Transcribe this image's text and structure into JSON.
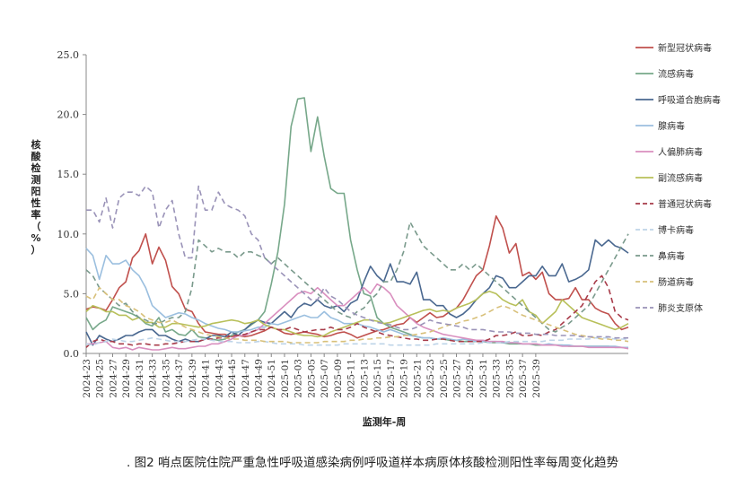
{
  "caption": ". 图2  哨点医院住院严重急性呼吸道感染病例呼吸道样本病原体核酸检测阳性率每周变化趋势",
  "chart_data": {
    "type": "line",
    "title": "",
    "xlabel": "监测年-周",
    "ylabel": "核酸检测阳性率（%）",
    "ylim": [
      0,
      25
    ],
    "yticks": [
      "0.0",
      "5.0",
      "10.0",
      "15.0",
      "20.0",
      "25.0"
    ],
    "grid": false,
    "legend_position": "right",
    "x_start": {
      "year": 2024,
      "week": 23
    },
    "x_labels": [
      "2024-23",
      "2024-25",
      "2024-27",
      "2024-29",
      "2024-31",
      "2024-33",
      "2024-35",
      "2024-37",
      "2024-39",
      "2024-41",
      "2024-43",
      "2024-45",
      "2024-47",
      "2024-49",
      "2024-51",
      "2025-01",
      "2025-03",
      "2025-05",
      "2025-07",
      "2025-09",
      "2025-11",
      "2025-13",
      "2025-15",
      "2025-17",
      "2025-19",
      "2025-21",
      "2025-23",
      "2025-25",
      "2025-27",
      "2025-29",
      "2025-31",
      "2025-33",
      "2025-35",
      "2025-37",
      "2025-39"
    ],
    "series": [
      {
        "name": "新型冠状病毒",
        "color": "#c0504d",
        "dash": false,
        "values": [
          3.7,
          3.9,
          3.8,
          3.6,
          4.5,
          5.5,
          6.0,
          8.0,
          8.6,
          10.0,
          7.5,
          8.9,
          7.8,
          5.6,
          5.0,
          3.7,
          3.5,
          2.5,
          1.8,
          1.7,
          1.6,
          1.6,
          1.4,
          1.5,
          1.4,
          1.5,
          1.7,
          1.9,
          2.2,
          2.0,
          1.7,
          1.6,
          1.7,
          1.8,
          1.7,
          1.6,
          1.4,
          1.5,
          1.7,
          1.8,
          1.6,
          1.3,
          1.5,
          1.7,
          1.9,
          2.0,
          2.2,
          2.4,
          2.5,
          3.0,
          2.6,
          3.0,
          3.4,
          3.0,
          3.1,
          3.5,
          3.8,
          4.5,
          5.5,
          6.5,
          7.0,
          9.0,
          11.5,
          10.5,
          8.4,
          9.2,
          6.5,
          6.8,
          6.2,
          6.8,
          5.0,
          4.5,
          4.5,
          4.6,
          5.5,
          4.5,
          4.5,
          3.8,
          3.5,
          3.3,
          2.5,
          2.0,
          2.2
        ]
      },
      {
        "name": "流感病毒",
        "color": "#77a88a",
        "dash": false,
        "values": [
          3.0,
          2.0,
          2.5,
          2.8,
          3.9,
          3.7,
          3.5,
          3.3,
          3.0,
          2.5,
          2.3,
          3.0,
          1.8,
          2.0,
          1.6,
          1.5,
          2.0,
          1.4,
          1.3,
          1.2,
          1.1,
          1.2,
          1.5,
          1.8,
          2.0,
          2.4,
          2.8,
          3.5,
          5.8,
          8.5,
          12.5,
          19.0,
          21.3,
          21.4,
          16.9,
          19.8,
          16.5,
          13.8,
          13.4,
          13.4,
          9.5,
          7.0,
          5.0,
          4.8,
          3.0,
          2.5,
          2.2,
          2.0,
          1.8,
          1.6,
          1.4,
          1.3,
          1.3,
          1.2,
          1.2,
          1.1,
          1.1,
          1.0,
          1.0,
          1.0,
          1.0,
          0.9,
          0.9,
          0.9,
          0.8,
          0.8,
          0.8,
          0.8,
          0.7,
          0.7,
          0.7,
          0.7,
          0.7,
          0.6,
          0.6,
          0.6,
          0.6,
          0.6,
          0.6,
          0.6,
          0.5,
          0.5,
          0.5
        ]
      },
      {
        "name": "呼吸道合胞病毒",
        "color": "#4a6890",
        "dash": false,
        "values": [
          1.8,
          0.7,
          1.5,
          1.2,
          1.0,
          1.2,
          1.5,
          1.5,
          1.8,
          2.0,
          2.0,
          1.5,
          1.5,
          1.2,
          1.0,
          1.2,
          1.0,
          1.0,
          1.2,
          1.5,
          1.5,
          1.4,
          1.8,
          1.5,
          2.0,
          2.5,
          2.8,
          2.6,
          2.5,
          3.0,
          3.5,
          3.0,
          3.8,
          4.2,
          4.0,
          4.5,
          4.0,
          3.8,
          4.0,
          3.5,
          4.2,
          4.5,
          6.0,
          7.3,
          6.5,
          6.0,
          7.5,
          6.0,
          6.0,
          5.8,
          6.8,
          4.5,
          4.5,
          4.0,
          4.0,
          3.3,
          3.0,
          3.3,
          3.8,
          4.5,
          5.0,
          5.5,
          6.5,
          6.3,
          5.5,
          5.5,
          6.0,
          6.5,
          6.5,
          7.3,
          6.5,
          6.5,
          7.5,
          6.0,
          6.2,
          6.5,
          7.0,
          9.5,
          9.0,
          9.5,
          9.0,
          8.8,
          8.4
        ]
      },
      {
        "name": "腺病毒",
        "color": "#9bbfdf",
        "dash": false,
        "values": [
          8.8,
          8.2,
          6.2,
          8.2,
          7.5,
          7.5,
          7.8,
          7.0,
          6.5,
          5.5,
          4.0,
          3.5,
          3.0,
          3.2,
          3.4,
          3.3,
          3.0,
          2.8,
          2.5,
          2.3,
          2.1,
          2.0,
          1.8,
          1.8,
          1.9,
          2.0,
          2.2,
          2.2,
          2.5,
          2.4,
          2.6,
          2.8,
          3.0,
          3.2,
          3.0,
          3.0,
          3.5,
          3.0,
          2.8,
          2.5,
          2.5,
          2.5,
          2.3,
          2.2,
          2.0,
          1.8,
          2.0,
          1.8,
          1.6,
          1.5,
          1.4,
          1.3,
          1.3,
          1.2,
          1.3,
          1.2,
          1.1,
          1.2,
          1.1,
          1.0,
          1.0,
          1.0,
          1.0,
          0.9,
          0.9,
          0.9,
          0.8,
          0.8,
          0.8,
          0.7,
          0.8,
          0.7,
          0.7,
          0.7,
          0.6,
          0.6,
          0.6,
          0.6,
          0.6,
          0.6,
          0.6,
          0.5,
          0.5
        ]
      },
      {
        "name": "人偏肺病毒",
        "color": "#d98fbf",
        "dash": false,
        "values": [
          0.8,
          0.8,
          0.9,
          1.0,
          0.5,
          0.4,
          0.5,
          0.3,
          0.5,
          0.4,
          0.3,
          0.3,
          0.4,
          0.5,
          0.4,
          0.4,
          0.5,
          0.6,
          0.6,
          0.8,
          0.8,
          1.0,
          1.2,
          1.5,
          1.5,
          1.8,
          2.0,
          2.5,
          3.0,
          3.5,
          4.0,
          4.5,
          5.0,
          5.2,
          5.0,
          5.5,
          5.0,
          4.5,
          4.0,
          4.0,
          4.5,
          5.0,
          5.5,
          5.0,
          5.8,
          5.5,
          5.0,
          4.0,
          3.5,
          3.0,
          2.5,
          2.2,
          2.0,
          1.8,
          1.6,
          1.5,
          1.4,
          1.3,
          1.2,
          1.1,
          1.1,
          1.0,
          1.0,
          1.0,
          0.9,
          0.9,
          0.8,
          0.8,
          0.8,
          0.7,
          0.7,
          0.7,
          0.6,
          0.6,
          0.6,
          0.6,
          0.5,
          0.5,
          0.5,
          0.5,
          0.5,
          0.5,
          0.4
        ]
      },
      {
        "name": "副流感病毒",
        "color": "#b8c05a",
        "dash": false,
        "values": [
          3.5,
          4.0,
          3.8,
          3.5,
          3.5,
          3.2,
          3.2,
          2.8,
          3.0,
          2.6,
          2.6,
          2.2,
          2.2,
          2.5,
          2.5,
          2.4,
          2.3,
          2.2,
          2.3,
          2.5,
          2.6,
          2.7,
          2.8,
          2.7,
          2.5,
          2.6,
          2.8,
          2.4,
          2.2,
          2.0,
          2.0,
          1.8,
          1.6,
          1.5,
          1.5,
          1.4,
          1.5,
          1.8,
          2.0,
          2.2,
          2.4,
          2.6,
          2.8,
          2.8,
          2.7,
          2.5,
          2.6,
          2.8,
          3.0,
          3.2,
          3.4,
          3.6,
          3.7,
          3.5,
          3.6,
          3.5,
          3.8,
          4.0,
          4.2,
          4.5,
          5.0,
          5.2,
          5.0,
          4.5,
          4.2,
          4.0,
          4.5,
          3.5,
          3.2,
          2.5,
          3.0,
          3.5,
          4.5,
          4.0,
          3.5,
          3.0,
          2.8,
          2.6,
          2.4,
          2.2,
          2.0,
          2.2,
          2.5
        ]
      },
      {
        "name": "普通冠状病毒",
        "color": "#a83c4a",
        "dash": true,
        "values": [
          0.5,
          1.0,
          1.2,
          1.0,
          1.0,
          0.8,
          0.8,
          0.7,
          0.8,
          0.8,
          0.7,
          0.7,
          0.8,
          0.8,
          0.9,
          1.0,
          1.0,
          1.0,
          1.2,
          1.2,
          1.3,
          1.3,
          1.5,
          1.5,
          1.6,
          1.8,
          2.0,
          2.0,
          2.2,
          2.0,
          2.0,
          2.2,
          2.0,
          1.8,
          1.9,
          2.0,
          2.0,
          2.2,
          2.0,
          2.0,
          2.2,
          2.5,
          2.2,
          2.0,
          1.8,
          1.6,
          1.5,
          1.4,
          1.3,
          1.2,
          1.2,
          1.1,
          1.1,
          1.2,
          1.2,
          1.1,
          1.0,
          1.0,
          1.0,
          1.0,
          1.0,
          1.2,
          1.5,
          1.5,
          1.6,
          1.8,
          1.5,
          1.5,
          1.6,
          1.5,
          1.8,
          2.0,
          2.5,
          3.0,
          3.5,
          4.0,
          5.0,
          6.0,
          6.5,
          5.5,
          3.5,
          3.0,
          2.8
        ]
      },
      {
        "name": "博卡病毒",
        "color": "#bed4e8",
        "dash": true,
        "values": [
          0.8,
          0.7,
          0.9,
          1.0,
          1.2,
          1.1,
          1.0,
          1.0,
          1.1,
          1.2,
          1.3,
          1.2,
          1.1,
          1.0,
          1.0,
          1.0,
          1.1,
          1.2,
          1.2,
          1.1,
          1.0,
          1.0,
          1.0,
          0.9,
          0.9,
          0.9,
          1.0,
          1.0,
          0.9,
          0.8,
          0.8,
          0.8,
          0.8,
          0.7,
          0.7,
          0.7,
          0.7,
          0.7,
          0.7,
          0.8,
          0.8,
          0.8,
          0.8,
          0.8,
          0.8,
          0.8,
          0.7,
          0.7,
          0.7,
          0.7,
          0.7,
          0.7,
          0.7,
          0.8,
          0.8,
          0.8,
          0.8,
          0.8,
          0.8,
          0.8,
          0.9,
          0.9,
          0.9,
          0.9,
          1.0,
          1.0,
          1.0,
          1.0,
          1.0,
          1.0,
          1.1,
          1.1,
          1.1,
          1.2,
          1.2,
          1.2,
          1.2,
          1.3,
          1.3,
          1.3,
          1.2,
          1.2,
          1.2
        ]
      },
      {
        "name": "鼻病毒",
        "color": "#7a9a8c",
        "dash": true,
        "values": [
          7.0,
          6.5,
          5.5,
          5.0,
          4.5,
          4.0,
          4.2,
          3.5,
          3.0,
          2.8,
          2.5,
          2.5,
          2.8,
          3.0,
          3.0,
          3.5,
          5.5,
          9.5,
          9.0,
          8.5,
          8.8,
          8.5,
          8.5,
          8.0,
          8.5,
          8.5,
          8.2,
          8.0,
          7.5,
          8.0,
          7.5,
          7.0,
          6.5,
          6.0,
          5.5,
          5.0,
          4.5,
          4.0,
          3.5,
          3.2,
          3.0,
          3.5,
          3.8,
          4.5,
          5.0,
          6.0,
          6.0,
          7.0,
          8.5,
          11.0,
          10.0,
          9.0,
          8.5,
          8.0,
          7.5,
          7.0,
          7.0,
          7.5,
          7.0,
          7.5,
          7.0,
          6.5,
          6.0,
          5.5,
          5.0,
          4.5,
          4.0,
          3.5,
          3.0,
          2.5,
          2.0,
          1.8,
          2.2,
          2.5,
          3.0,
          3.5,
          4.0,
          5.0,
          6.0,
          7.0,
          8.0,
          9.0,
          10.0
        ]
      },
      {
        "name": "肠道病毒",
        "color": "#d8c07a",
        "dash": true,
        "values": [
          4.8,
          4.5,
          5.5,
          5.0,
          4.5,
          4.5,
          4.0,
          3.8,
          3.5,
          3.0,
          2.8,
          2.6,
          2.6,
          2.8,
          2.5,
          2.2,
          2.0,
          1.8,
          1.6,
          1.5,
          1.4,
          1.3,
          1.2,
          1.2,
          1.1,
          1.1,
          1.1,
          1.0,
          1.0,
          1.0,
          1.0,
          0.9,
          0.9,
          0.9,
          0.9,
          0.9,
          1.0,
          1.0,
          1.0,
          1.0,
          1.1,
          1.1,
          1.2,
          1.2,
          1.3,
          1.3,
          1.4,
          1.4,
          1.5,
          1.5,
          1.6,
          1.7,
          1.8,
          2.0,
          2.2,
          2.4,
          2.5,
          2.7,
          2.8,
          3.0,
          3.2,
          3.5,
          3.8,
          4.0,
          3.8,
          3.5,
          3.2,
          3.0,
          2.8,
          2.6,
          2.4,
          2.2,
          2.0,
          1.8,
          1.6,
          1.5,
          1.4,
          1.3,
          1.2,
          1.2,
          1.1,
          1.1,
          1.0
        ]
      },
      {
        "name": "肺炎支原体",
        "color": "#9a93b8",
        "dash": true,
        "values": [
          12.0,
          12.0,
          11.0,
          13.0,
          10.5,
          13.0,
          13.5,
          13.5,
          13.2,
          14.0,
          13.5,
          10.5,
          12.0,
          12.8,
          10.0,
          8.0,
          8.0,
          14.0,
          12.0,
          12.0,
          13.5,
          12.5,
          12.2,
          12.0,
          11.5,
          10.0,
          9.5,
          8.0,
          7.5,
          7.0,
          6.5,
          6.0,
          5.5,
          5.0,
          4.5,
          4.5,
          5.5,
          4.8,
          4.5,
          4.0,
          3.5,
          3.2,
          3.0,
          2.8,
          2.6,
          2.5,
          2.4,
          2.2,
          2.0,
          2.0,
          2.2,
          2.5,
          2.8,
          2.6,
          2.5,
          2.4,
          2.3,
          2.2,
          2.0,
          2.0,
          2.0,
          1.9,
          1.8,
          1.8,
          1.8,
          1.7,
          1.7,
          1.7,
          1.6,
          1.6,
          1.6,
          1.5,
          1.5,
          1.5,
          1.5,
          1.4,
          1.4,
          1.4,
          1.4,
          1.4,
          1.3,
          1.3,
          1.3
        ]
      }
    ]
  }
}
